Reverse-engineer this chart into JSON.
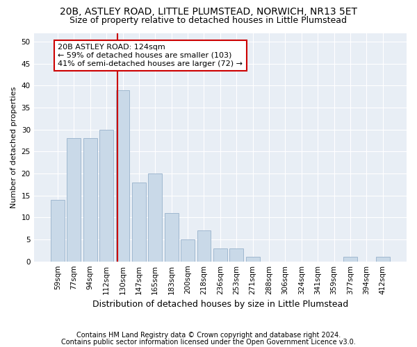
{
  "title1": "20B, ASTLEY ROAD, LITTLE PLUMSTEAD, NORWICH, NR13 5ET",
  "title2": "Size of property relative to detached houses in Little Plumstead",
  "xlabel": "Distribution of detached houses by size in Little Plumstead",
  "ylabel": "Number of detached properties",
  "footnote1": "Contains HM Land Registry data © Crown copyright and database right 2024.",
  "footnote2": "Contains public sector information licensed under the Open Government Licence v3.0.",
  "categories": [
    "59sqm",
    "77sqm",
    "94sqm",
    "112sqm",
    "130sqm",
    "147sqm",
    "165sqm",
    "183sqm",
    "200sqm",
    "218sqm",
    "236sqm",
    "253sqm",
    "271sqm",
    "288sqm",
    "306sqm",
    "324sqm",
    "341sqm",
    "359sqm",
    "377sqm",
    "394sqm",
    "412sqm"
  ],
  "values": [
    14,
    28,
    28,
    30,
    39,
    18,
    20,
    11,
    5,
    7,
    3,
    3,
    1,
    0,
    0,
    0,
    0,
    0,
    1,
    0,
    1
  ],
  "bar_color": "#c9d9e8",
  "bar_edgecolor": "#a0b8d0",
  "vline_color": "#cc0000",
  "annotation_title": "20B ASTLEY ROAD: 124sqm",
  "annotation_line2": "← 59% of detached houses are smaller (103)",
  "annotation_line3": "41% of semi-detached houses are larger (72) →",
  "annotation_box_color": "#cc0000",
  "ylim": [
    0,
    52
  ],
  "background_color": "#e8eef5",
  "grid_color": "#ffffff",
  "title1_fontsize": 10,
  "title2_fontsize": 9,
  "xlabel_fontsize": 9,
  "ylabel_fontsize": 8,
  "tick_fontsize": 7.5,
  "annotation_fontsize": 8,
  "footnote_fontsize": 7
}
